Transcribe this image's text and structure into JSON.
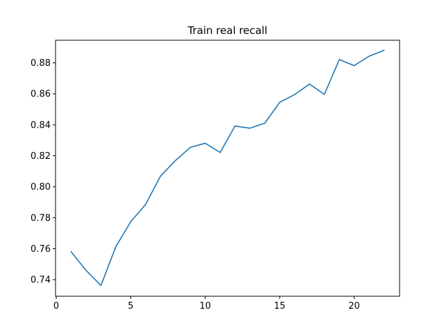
{
  "chart_data": {
    "type": "line",
    "title": "Train real recall",
    "xlabel": "",
    "ylabel": "",
    "xlim": [
      -0.05,
      23.05
    ],
    "ylim": [
      0.7293,
      0.8946
    ],
    "xticks": [
      0,
      5,
      10,
      15,
      20
    ],
    "xtick_labels": [
      "0",
      "5",
      "10",
      "15",
      "20"
    ],
    "yticks": [
      0.74,
      0.76,
      0.78,
      0.8,
      0.82,
      0.84,
      0.86,
      0.88
    ],
    "ytick_labels": [
      "0.74",
      "0.76",
      "0.78",
      "0.80",
      "0.82",
      "0.84",
      "0.86",
      "0.88"
    ],
    "grid": false,
    "series": [
      {
        "color": "#1f77b4",
        "x": [
          1,
          2,
          3,
          4,
          5,
          6,
          7,
          8,
          9,
          10,
          11,
          12,
          13,
          14,
          15,
          16,
          17,
          18,
          19,
          20,
          21,
          22
        ],
        "y": [
          0.758,
          0.746,
          0.7362,
          0.7613,
          0.7774,
          0.7886,
          0.8069,
          0.8169,
          0.8254,
          0.8281,
          0.8221,
          0.8392,
          0.8378,
          0.841,
          0.8545,
          0.8595,
          0.8663,
          0.8596,
          0.8821,
          0.8782,
          0.8843,
          0.8881
        ]
      }
    ]
  }
}
